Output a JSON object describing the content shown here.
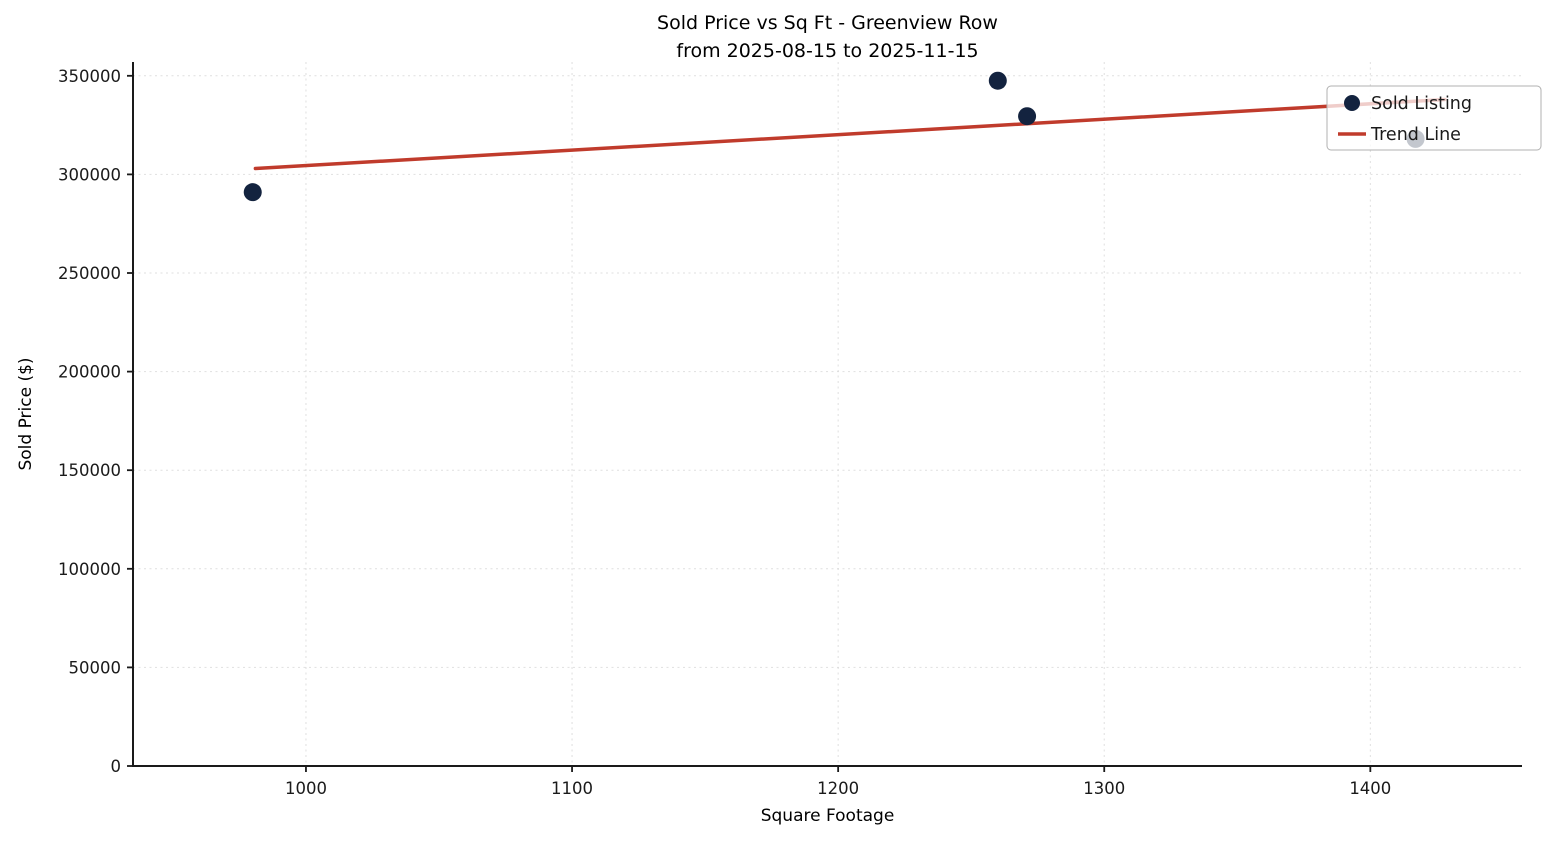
{
  "chart_data": {
    "type": "scatter",
    "title": "Sold Price vs Sq Ft - Greenview Row",
    "subtitle": "from 2025-08-15 to 2025-11-15",
    "xlabel": "Square Footage",
    "ylabel": "Sold Price ($)",
    "xlim": [
      935,
      1457
    ],
    "ylim": [
      0,
      357000
    ],
    "x_ticks": [
      1000,
      1100,
      1200,
      1300,
      1400
    ],
    "x_tick_labels": [
      "1000",
      "1100",
      "1200",
      "1300",
      "1400"
    ],
    "y_ticks": [
      0,
      50000,
      100000,
      150000,
      200000,
      250000,
      300000,
      350000
    ],
    "y_tick_labels": [
      "0",
      "50000",
      "100000",
      "150000",
      "200000",
      "250000",
      "300000",
      "350000"
    ],
    "grid": true,
    "legend_position": "upper right",
    "colors": {
      "point": "#13233f",
      "trend": "#c03b2c",
      "background": "#ffffff",
      "grid": "#dadada"
    },
    "series": [
      {
        "name": "Sold Listing",
        "type": "scatter",
        "color": "#13233f",
        "points": [
          [
            980,
            291000
          ],
          [
            1260,
            347500
          ],
          [
            1271,
            329500
          ],
          [
            1417,
            318000
          ]
        ]
      },
      {
        "name": "Trend Line",
        "type": "line",
        "color": "#c03b2c",
        "points": [
          [
            981,
            303000
          ],
          [
            1428,
            338000
          ]
        ]
      }
    ]
  }
}
